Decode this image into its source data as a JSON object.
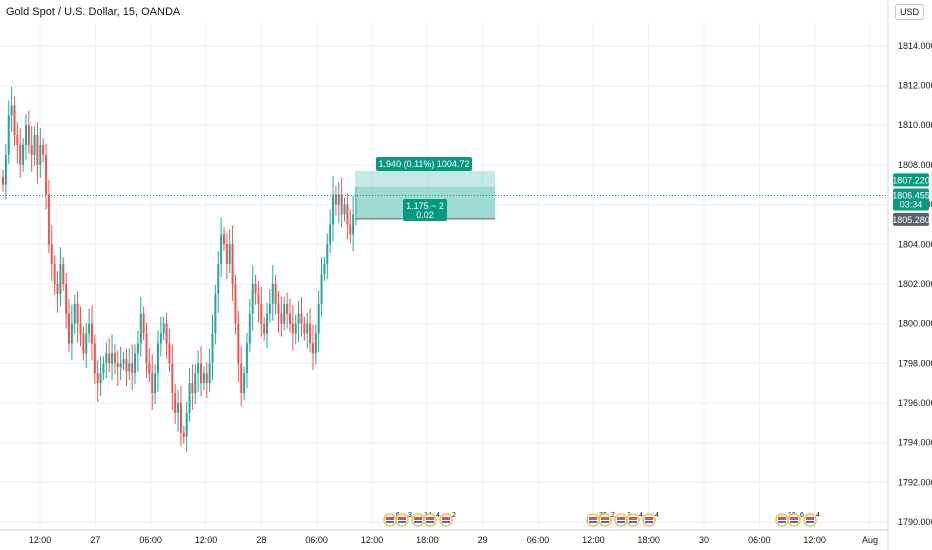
{
  "header": {
    "symbol": "Gold Spot / U.S. Dollar, 15, OANDA",
    "currency": "USD"
  },
  "colors": {
    "up": "#26a69a",
    "down": "#ef5350",
    "target_zone": "#7fcfc4",
    "teal": "#089981",
    "grey_tag": "#5d606b"
  },
  "price_tags": {
    "target": "1807.220",
    "current": "1806.455",
    "countdown": "03:34",
    "entry": "1805.280"
  },
  "position_labels": {
    "target": "1.940 (0.11%) 1004.72",
    "ratio": "1.175 ~ 2",
    "qty": "0.02"
  },
  "events": [
    {
      "x": "28 12:00",
      "counts": [
        "6",
        "3",
        "14",
        "4",
        "2"
      ]
    },
    {
      "x": "29 12:00",
      "counts": [
        "33",
        "2",
        "1",
        "4",
        "4"
      ]
    },
    {
      "x": "30 18:00",
      "counts": [
        "10",
        "6",
        "4"
      ]
    }
  ],
  "chart_data": {
    "type": "candlestick",
    "title": "Gold Spot / U.S. Dollar, 15, OANDA",
    "x_ticks": [
      "12:00",
      "27",
      "06:00",
      "12:00",
      "28",
      "06:00",
      "12:00",
      "18:00",
      "29",
      "06:00",
      "12:00",
      "18:00",
      "30",
      "06:00",
      "12:00",
      "Aug"
    ],
    "y_ticks": [
      "1814.000",
      "1812.000",
      "1810.000",
      "1808.000",
      "1806.000",
      "1804.000",
      "1802.000",
      "1800.000",
      "1798.000",
      "1796.000",
      "1794.000",
      "1792.000",
      "1790.000"
    ],
    "ylim": [
      1789.6,
      1815.2
    ],
    "grid": true,
    "close_approx": [
      1807,
      1808.5,
      1810.5,
      1811,
      1809.5,
      1809,
      1808,
      1809,
      1810,
      1809,
      1808.5,
      1809.5,
      1808,
      1809,
      1808.5,
      1806.5,
      1804,
      1803,
      1802,
      1801.5,
      1803,
      1802,
      1800.5,
      1799,
      1800,
      1801,
      1800,
      1799.5,
      1798.5,
      1799.5,
      1800,
      1799,
      1797.5,
      1797,
      1797.5,
      1798,
      1798.5,
      1798,
      1798.5,
      1798,
      1797.8,
      1798,
      1798.2,
      1797.6,
      1798,
      1797.5,
      1798.5,
      1799,
      1800.5,
      1799.5,
      1798,
      1797.5,
      1796.5,
      1797.5,
      1799,
      1799.5,
      1800,
      1799,
      1798,
      1796.5,
      1795.5,
      1796,
      1794.5,
      1794.3,
      1795.5,
      1797,
      1796.5,
      1797.5,
      1798,
      1797,
      1797.5,
      1797,
      1798,
      1799.5,
      1801.5,
      1803,
      1804.5,
      1804,
      1803,
      1804,
      1802,
      1800,
      1798,
      1796.5,
      1797.5,
      1799,
      1800.5,
      1802,
      1801.5,
      1801,
      1800,
      1799.5,
      1800.5,
      1801,
      1802,
      1801,
      1800.5,
      1800,
      1801,
      1800.5,
      1800,
      1799.5,
      1800,
      1800.5,
      1800,
      1799.5,
      1800,
      1799,
      1798.5,
      1799.5,
      1801,
      1802.5,
      1803,
      1804,
      1805,
      1806.5,
      1806,
      1806.5,
      1805.5,
      1806,
      1805,
      1804.5,
      1805.5,
      1806.455
    ],
    "position": {
      "entry": 1805.28,
      "target": 1807.22,
      "stop": 1805.3
    }
  }
}
